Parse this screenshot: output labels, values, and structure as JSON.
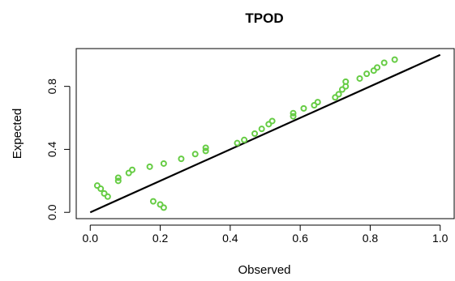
{
  "chart_data": {
    "type": "scatter",
    "title": "TPOD",
    "xlabel": "Observed",
    "ylabel": "Expected",
    "xlim": [
      -0.04,
      1.04
    ],
    "ylim": [
      -0.04,
      1.04
    ],
    "x_ticks": [
      0.0,
      0.2,
      0.4,
      0.6,
      0.8,
      1.0
    ],
    "x_tick_labels": [
      "0.0",
      "0.2",
      "0.4",
      "0.6",
      "0.8",
      "1.0"
    ],
    "y_ticks": [
      0.0,
      0.4,
      0.8
    ],
    "y_tick_labels": [
      "0.0",
      "0.4",
      "0.8"
    ],
    "grid": false,
    "legend": "none",
    "point_color": "#66cc44",
    "line_color": "#000000",
    "reference_line": {
      "x": [
        0.0,
        1.0
      ],
      "y": [
        0.0,
        1.0
      ]
    },
    "series": [
      {
        "x": [
          0.02,
          0.03,
          0.04,
          0.05,
          0.08,
          0.08,
          0.11,
          0.12,
          0.17,
          0.18,
          0.2,
          0.21,
          0.21,
          0.26,
          0.3,
          0.33,
          0.33,
          0.42,
          0.44,
          0.47,
          0.49,
          0.51,
          0.52,
          0.58,
          0.58,
          0.61,
          0.64,
          0.65,
          0.7,
          0.71,
          0.72,
          0.73,
          0.73,
          0.77,
          0.79,
          0.81,
          0.82,
          0.84,
          0.87
        ],
        "y": [
          0.17,
          0.15,
          0.12,
          0.1,
          0.2,
          0.22,
          0.25,
          0.27,
          0.29,
          0.07,
          0.05,
          0.03,
          0.31,
          0.34,
          0.37,
          0.39,
          0.41,
          0.44,
          0.46,
          0.5,
          0.53,
          0.56,
          0.58,
          0.61,
          0.63,
          0.66,
          0.68,
          0.7,
          0.73,
          0.75,
          0.78,
          0.8,
          0.83,
          0.85,
          0.88,
          0.9,
          0.92,
          0.95,
          0.97
        ]
      }
    ]
  }
}
